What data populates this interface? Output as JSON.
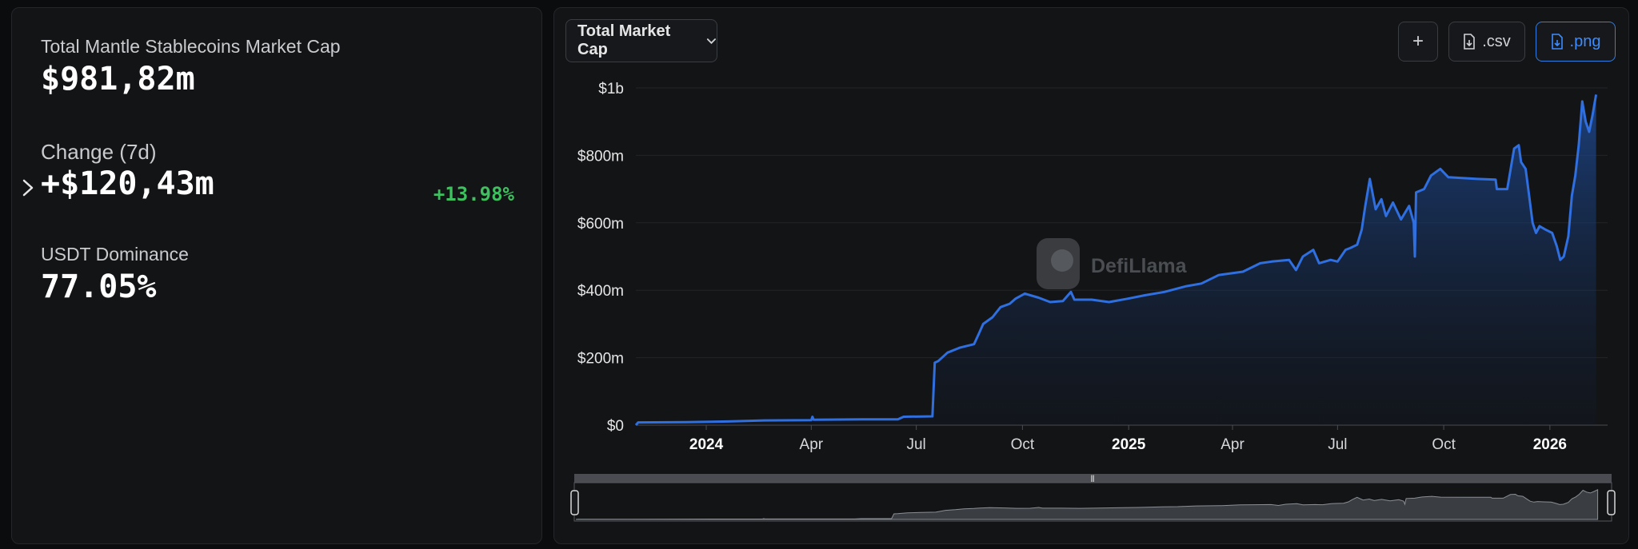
{
  "stats": {
    "market_cap_label": "Total Mantle Stablecoins Market Cap",
    "market_cap_value": "$981,82m",
    "change_label": "Change (7d)",
    "change_value": "+$120,43m",
    "change_pct": "+13.98%",
    "dominance_label": "USDT Dominance",
    "dominance_value": "77.05%"
  },
  "toolbar": {
    "dropdown_label": "Total Market Cap",
    "plus_label": "+",
    "csv_label": ".csv",
    "png_label": ".png"
  },
  "watermark": {
    "text": "DefiLlama"
  },
  "colors": {
    "line": "#2f6fe0",
    "positive": "#3fbf5f",
    "accent": "#3b8cff"
  },
  "icons": {
    "chevron": "chevron-right-icon",
    "dropdown": "chevron-down-icon",
    "file": "file-download-icon"
  },
  "chart_data": {
    "type": "area",
    "title": "",
    "xlabel": "",
    "ylabel": "",
    "ylim": [
      0,
      1000
    ],
    "y_unit": "$m",
    "y_ticks": [
      {
        "value": 0,
        "label": "$0"
      },
      {
        "value": 200,
        "label": "$200m"
      },
      {
        "value": 400,
        "label": "$400m"
      },
      {
        "value": 600,
        "label": "$600m"
      },
      {
        "value": 800,
        "label": "$800m"
      },
      {
        "value": 1000,
        "label": "$1b"
      }
    ],
    "xlim": [
      "2023-11-01",
      "2026-02-20"
    ],
    "x_ticks": [
      {
        "date": "2024-01-01",
        "label": "2024",
        "bold": true
      },
      {
        "date": "2024-04-01",
        "label": "Apr",
        "bold": false
      },
      {
        "date": "2024-07-01",
        "label": "Jul",
        "bold": false
      },
      {
        "date": "2024-10-01",
        "label": "Oct",
        "bold": false
      },
      {
        "date": "2025-01-01",
        "label": "2025",
        "bold": true
      },
      {
        "date": "2025-04-01",
        "label": "Apr",
        "bold": false
      },
      {
        "date": "2025-07-01",
        "label": "Jul",
        "bold": false
      },
      {
        "date": "2025-10-01",
        "label": "Oct",
        "bold": false
      },
      {
        "date": "2026-01-01",
        "label": "2026",
        "bold": true
      }
    ],
    "grid": true,
    "series": [
      {
        "points": [
          [
            "2023-11-01",
            0
          ],
          [
            "2023-11-03",
            8
          ],
          [
            "2023-12-15",
            9
          ],
          [
            "2024-01-20",
            11
          ],
          [
            "2024-02-20",
            14
          ],
          [
            "2024-04-01",
            15
          ],
          [
            "2024-04-02",
            25
          ],
          [
            "2024-04-03",
            16
          ],
          [
            "2024-05-15",
            17
          ],
          [
            "2024-06-15",
            17
          ],
          [
            "2024-06-20",
            25
          ],
          [
            "2024-07-15",
            26
          ],
          [
            "2024-07-17",
            185
          ],
          [
            "2024-07-20",
            190
          ],
          [
            "2024-07-28",
            215
          ],
          [
            "2024-08-08",
            230
          ],
          [
            "2024-08-20",
            240
          ],
          [
            "2024-08-24",
            270
          ],
          [
            "2024-08-28",
            300
          ],
          [
            "2024-09-05",
            320
          ],
          [
            "2024-09-12",
            350
          ],
          [
            "2024-09-20",
            360
          ],
          [
            "2024-09-25",
            375
          ],
          [
            "2024-10-03",
            390
          ],
          [
            "2024-10-15",
            378
          ],
          [
            "2024-10-25",
            365
          ],
          [
            "2024-11-05",
            368
          ],
          [
            "2024-11-12",
            395
          ],
          [
            "2024-11-15",
            372
          ],
          [
            "2024-11-30",
            372
          ],
          [
            "2024-12-15",
            365
          ],
          [
            "2024-12-31",
            375
          ],
          [
            "2025-01-15",
            385
          ],
          [
            "2025-02-01",
            395
          ],
          [
            "2025-02-20",
            412
          ],
          [
            "2025-03-05",
            420
          ],
          [
            "2025-03-20",
            445
          ],
          [
            "2025-04-10",
            455
          ],
          [
            "2025-04-25",
            480
          ],
          [
            "2025-05-05",
            485
          ],
          [
            "2025-05-20",
            490
          ],
          [
            "2025-05-26",
            460
          ],
          [
            "2025-06-01",
            500
          ],
          [
            "2025-06-10",
            520
          ],
          [
            "2025-06-15",
            480
          ],
          [
            "2025-06-25",
            490
          ],
          [
            "2025-07-01",
            485
          ],
          [
            "2025-07-08",
            520
          ],
          [
            "2025-07-12",
            525
          ],
          [
            "2025-07-18",
            535
          ],
          [
            "2025-07-22",
            580
          ],
          [
            "2025-07-25",
            650
          ],
          [
            "2025-07-29",
            730
          ],
          [
            "2025-08-03",
            640
          ],
          [
            "2025-08-08",
            670
          ],
          [
            "2025-08-12",
            620
          ],
          [
            "2025-08-18",
            660
          ],
          [
            "2025-08-25",
            610
          ],
          [
            "2025-09-01",
            650
          ],
          [
            "2025-09-05",
            600
          ],
          [
            "2025-09-06",
            500
          ],
          [
            "2025-09-07",
            690
          ],
          [
            "2025-09-14",
            700
          ],
          [
            "2025-09-20",
            740
          ],
          [
            "2025-09-28",
            760
          ],
          [
            "2025-10-05",
            735
          ],
          [
            "2025-10-30",
            730
          ],
          [
            "2025-11-15",
            728
          ],
          [
            "2025-11-16",
            700
          ],
          [
            "2025-11-25",
            700
          ],
          [
            "2025-12-01",
            820
          ],
          [
            "2025-12-05",
            830
          ],
          [
            "2025-12-07",
            780
          ],
          [
            "2025-12-11",
            760
          ],
          [
            "2025-12-14",
            680
          ],
          [
            "2025-12-17",
            600
          ],
          [
            "2025-12-20",
            570
          ],
          [
            "2025-12-23",
            590
          ],
          [
            "2025-12-28",
            580
          ],
          [
            "2026-01-03",
            570
          ],
          [
            "2026-01-07",
            530
          ],
          [
            "2026-01-10",
            490
          ],
          [
            "2026-01-13",
            500
          ],
          [
            "2026-01-17",
            560
          ],
          [
            "2026-01-20",
            680
          ],
          [
            "2026-01-23",
            740
          ],
          [
            "2026-01-26",
            830
          ],
          [
            "2026-01-29",
            960
          ],
          [
            "2026-02-01",
            900
          ],
          [
            "2026-02-04",
            870
          ],
          [
            "2026-02-07",
            920
          ],
          [
            "2026-02-10",
            980
          ]
        ]
      }
    ]
  }
}
